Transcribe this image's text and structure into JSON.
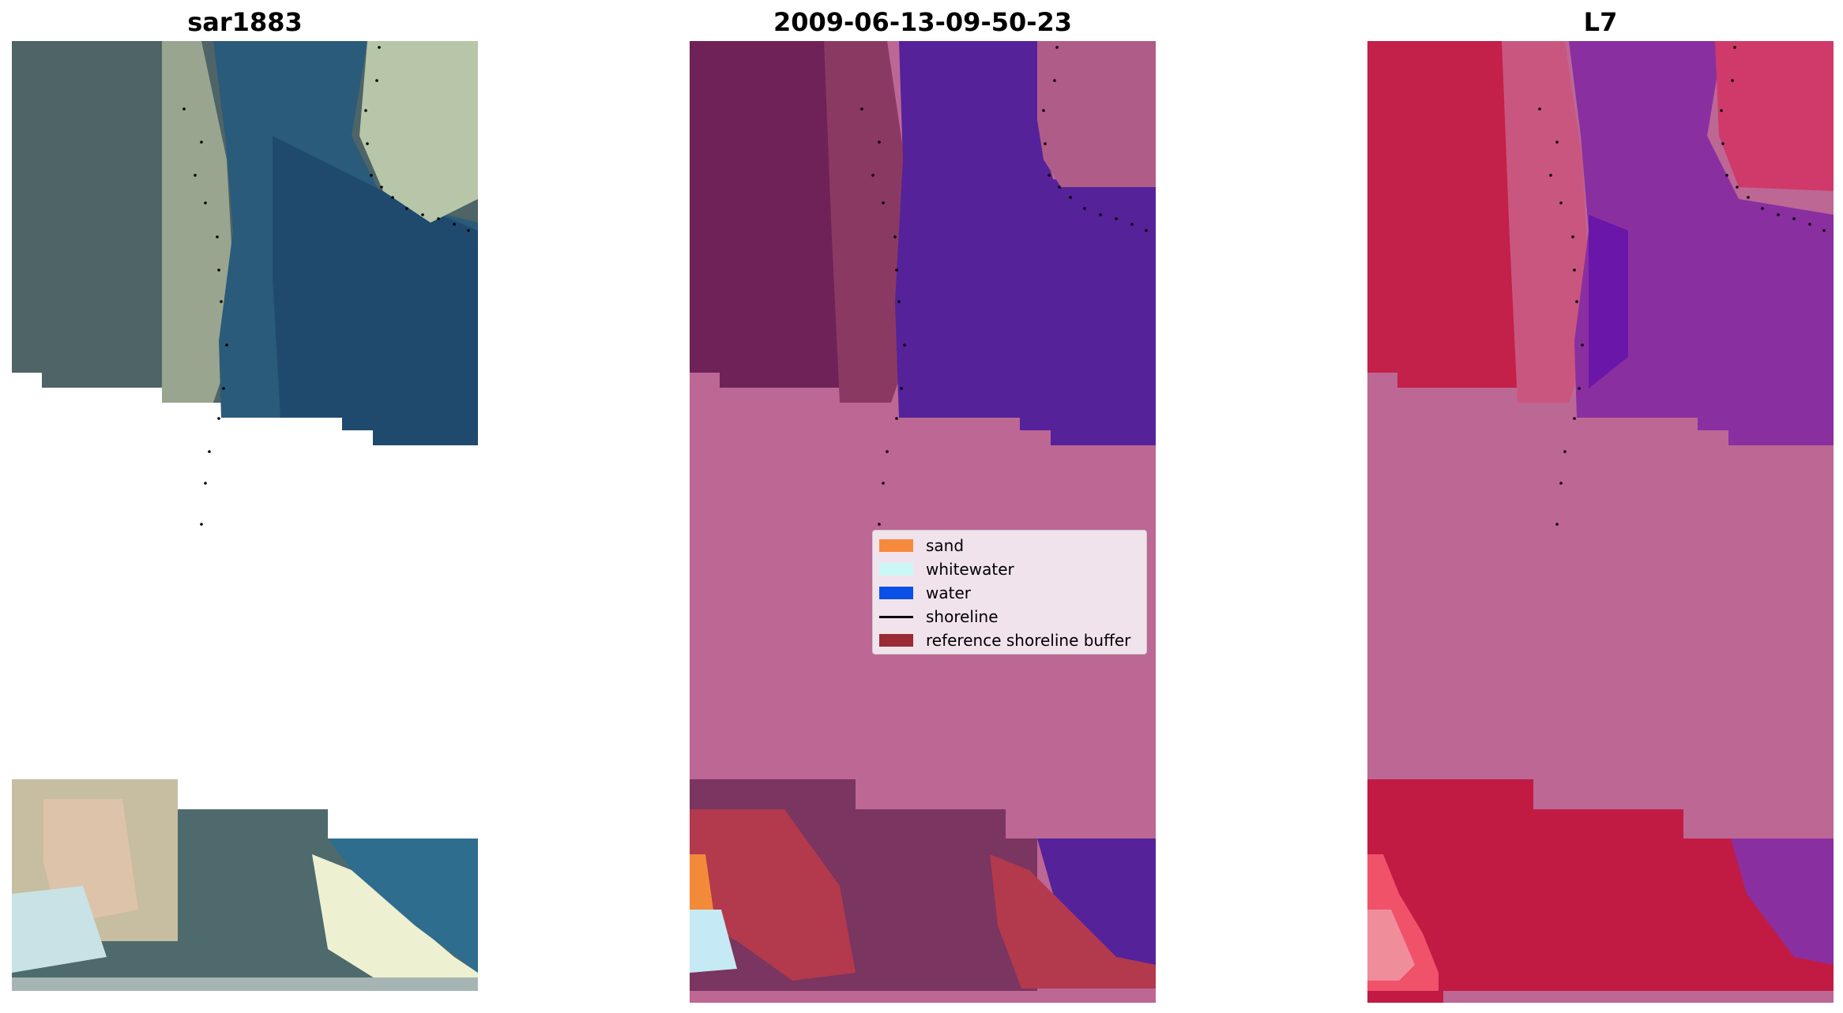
{
  "panels": [
    {
      "title": "sar1883",
      "colors": {
        "top_land": "#4e6466",
        "top_beach": "#9aa58f",
        "top_water": "#2a5b7a",
        "top_water_deep": "#1f4a6e",
        "top_right_sand": "#b7c6a8",
        "bottom_sand": "#c7bda0",
        "bottom_pink": "#dcc3a9",
        "bottom_mid": "#4e6a6c",
        "bottom_foam": "#eef0d2",
        "bottom_water": "#2f6d8e",
        "bottom_edge": "#a7b4b4"
      }
    },
    {
      "title": "2009-06-13-09-50-23",
      "colors": {
        "buffer_top": "#6e2258",
        "buffer_beach": "#8a3a62",
        "water": "#55229a",
        "nodata": "#bd6795",
        "top_right_buffer": "#b05c89",
        "bottom_buffer": "#7a3561",
        "bottom_sand_buffer": "#b23a4c",
        "sand": "#f28a3a",
        "whitewater": "#c5e9f5"
      }
    },
    {
      "title": "L7",
      "colors": {
        "land": "#c3204a",
        "beach": "#c9567e",
        "water": "#8a2fa0",
        "water_deep": "#6a16a8",
        "nodata": "#bd6795",
        "top_right_land": "#cf3a6a",
        "bottom_land": "#c11b44",
        "bottom_bright": "#f0526a",
        "bottom_pale": "#f08d9b"
      }
    }
  ],
  "legend": {
    "items": [
      {
        "label": "sand",
        "swatch": "#f58a3c",
        "kind": "patch"
      },
      {
        "label": "whitewater",
        "swatch": "#ccf7f7",
        "kind": "patch"
      },
      {
        "label": "water",
        "swatch": "#0a50e6",
        "kind": "patch"
      },
      {
        "label": "shoreline",
        "swatch": "#000000",
        "kind": "line"
      },
      {
        "label": "reference shoreline buffer",
        "swatch": "#9a2a34",
        "kind": "patch"
      }
    ]
  }
}
